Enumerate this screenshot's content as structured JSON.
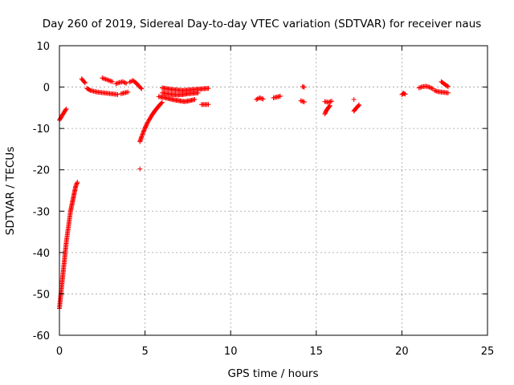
{
  "chart_data": {
    "type": "scatter",
    "title": "Day 260 of 2019, Sidereal Day-to-day VTEC variation (SDTVAR) for receiver naus",
    "xlabel": "GPS time / hours",
    "ylabel": "SDTVAR / TECUs",
    "xlim": [
      0,
      25
    ],
    "ylim": [
      -60,
      10
    ],
    "xticks": [
      0,
      5,
      10,
      15,
      20,
      25
    ],
    "yticks": [
      10,
      0,
      -10,
      -20,
      -30,
      -40,
      -50,
      -60
    ],
    "xtick_labels": [
      "0",
      "5",
      "10",
      "15",
      "20",
      "25"
    ],
    "ytick_labels": [
      "10",
      "0",
      "-10",
      "-20",
      "-30",
      "-40",
      "-50",
      "-60"
    ],
    "grid": true,
    "marker": "plus",
    "color": "#ff0000",
    "series": [
      {
        "name": "SDTVAR",
        "segments": [
          {
            "x": [
              0.0,
              0.1,
              0.2,
              0.3,
              0.4
            ],
            "y": [
              -8.0,
              -7.3,
              -6.6,
              -5.9,
              -5.3
            ]
          },
          {
            "x": [
              0.0,
              0.05,
              0.1,
              0.15,
              0.2,
              0.25,
              0.3,
              0.35,
              0.4,
              0.45,
              0.5,
              0.55,
              0.6,
              0.65,
              0.7,
              0.75,
              0.8,
              0.85,
              0.9,
              0.95,
              1.0,
              1.05
            ],
            "y": [
              -53.5,
              -51.5,
              -49.5,
              -47.5,
              -45.5,
              -43.5,
              -41.5,
              -39.5,
              -37.5,
              -36.0,
              -34.5,
              -33.0,
              -31.5,
              -30.0,
              -29.0,
              -28.0,
              -27.0,
              -26.0,
              -25.0,
              -24.0,
              -23.5,
              -23.0
            ]
          },
          {
            "x": [
              1.3,
              1.5
            ],
            "y": [
              2.0,
              1.0
            ]
          },
          {
            "x": [
              1.6,
              1.8,
              2.0,
              2.2,
              2.4,
              2.6,
              2.8,
              3.0,
              3.2,
              3.4
            ],
            "y": [
              -0.3,
              -0.8,
              -1.0,
              -1.2,
              -1.3,
              -1.4,
              -1.5,
              -1.6,
              -1.7,
              -1.8
            ]
          },
          {
            "x": [
              2.5,
              2.7,
              2.9,
              3.1
            ],
            "y": [
              2.2,
              1.9,
              1.6,
              1.3
            ]
          },
          {
            "x": [
              3.3,
              3.5,
              3.7,
              3.9
            ],
            "y": [
              0.8,
              1.1,
              1.3,
              0.9
            ]
          },
          {
            "x": [
              3.6,
              3.8,
              4.0
            ],
            "y": [
              -1.6,
              -1.4,
              -1.2
            ]
          },
          {
            "x": [
              4.1,
              4.3,
              4.5,
              4.7,
              4.8
            ],
            "y": [
              1.2,
              1.6,
              0.9,
              0.0,
              -0.4
            ]
          },
          {
            "x": [
              4.7
            ],
            "y": [
              -19.8
            ]
          },
          {
            "x": [
              4.7,
              4.8,
              4.9,
              5.0,
              5.1,
              5.2,
              5.3,
              5.4,
              5.5,
              5.6,
              5.7,
              5.8,
              5.9,
              6.0
            ],
            "y": [
              -13.2,
              -12.0,
              -10.9,
              -9.9,
              -9.0,
              -8.2,
              -7.5,
              -6.8,
              -6.2,
              -5.6,
              -5.1,
              -4.6,
              -4.1,
              -3.7
            ]
          },
          {
            "x": [
              6.0,
              6.3,
              6.6,
              6.9,
              7.2,
              7.5,
              7.8,
              8.1,
              8.4,
              8.7
            ],
            "y": [
              -0.2,
              -0.4,
              -0.6,
              -0.7,
              -0.8,
              -0.7,
              -0.6,
              -0.5,
              -0.4,
              -0.3
            ]
          },
          {
            "x": [
              6.0,
              6.3,
              6.6,
              6.9,
              7.2,
              7.5,
              7.8,
              8.1
            ],
            "y": [
              -1.4,
              -1.6,
              -1.8,
              -1.9,
              -1.8,
              -1.6,
              -1.5,
              -1.4
            ]
          },
          {
            "x": [
              5.8,
              6.1,
              6.4,
              6.7,
              7.0,
              7.3,
              7.6,
              7.9
            ],
            "y": [
              -2.3,
              -2.5,
              -2.8,
              -3.1,
              -3.3,
              -3.5,
              -3.3,
              -3.0
            ]
          },
          {
            "x": [
              8.3,
              8.5,
              8.7
            ],
            "y": [
              -4.2,
              -4.2,
              -4.2
            ]
          },
          {
            "x": [
              11.5,
              11.7,
              11.9
            ],
            "y": [
              -3.0,
              -2.6,
              -2.9
            ]
          },
          {
            "x": [
              12.5,
              12.9
            ],
            "y": [
              -2.6,
              -2.2
            ]
          },
          {
            "x": [
              14.1,
              14.3
            ],
            "y": [
              -3.3,
              -3.6
            ]
          },
          {
            "x": [
              14.2,
              14.3
            ],
            "y": [
              0.1,
              0.0
            ]
          },
          {
            "x": [
              15.5,
              15.6,
              15.7,
              15.8
            ],
            "y": [
              -6.5,
              -5.6,
              -5.0,
              -4.5
            ]
          },
          {
            "x": [
              15.5,
              15.7,
              15.9
            ],
            "y": [
              -3.5,
              -3.7,
              -3.4
            ]
          },
          {
            "x": [
              17.2
            ],
            "y": [
              -3.0
            ]
          },
          {
            "x": [
              17.2,
              17.3,
              17.4,
              17.5
            ],
            "y": [
              -5.8,
              -5.2,
              -4.8,
              -4.3
            ]
          },
          {
            "x": [
              20.0,
              20.1,
              20.2
            ],
            "y": [
              -1.8,
              -1.5,
              -1.7
            ]
          },
          {
            "x": [
              21.0,
              21.2,
              21.4,
              21.6,
              21.8
            ],
            "y": [
              -0.2,
              0.1,
              0.2,
              0.0,
              -0.4
            ]
          },
          {
            "x": [
              21.9,
              22.1,
              22.3,
              22.5,
              22.7
            ],
            "y": [
              -0.8,
              -1.1,
              -1.2,
              -1.3,
              -1.4
            ]
          },
          {
            "x": [
              22.3,
              22.5,
              22.7
            ],
            "y": [
              1.3,
              0.7,
              0.1
            ]
          }
        ]
      }
    ]
  }
}
